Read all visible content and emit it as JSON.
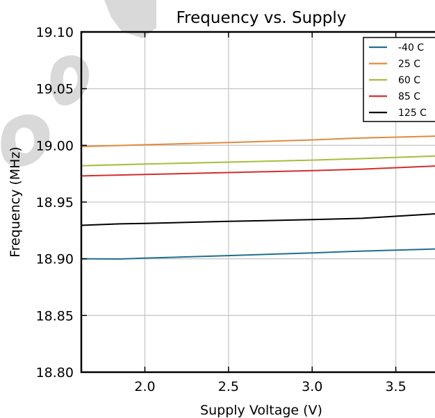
{
  "chart_data": {
    "type": "line",
    "title": "Frequency vs. Supply",
    "xlabel": "Supply Voltage (V)",
    "ylabel": "Frequency (MHz)",
    "xlim": [
      1.62,
      3.78
    ],
    "ylim": [
      18.8,
      19.1
    ],
    "xticks": [
      2.0,
      2.5,
      3.0,
      3.5
    ],
    "xtick_labels": [
      "2.0",
      "2.5",
      "3.0",
      "3.5"
    ],
    "yticks": [
      18.8,
      18.85,
      18.9,
      18.95,
      19.0,
      19.05,
      19.1
    ],
    "ytick_labels": [
      "18.80",
      "18.85",
      "18.90",
      "18.95",
      "19.00",
      "19.05",
      "19.10"
    ],
    "grid": true,
    "legend_position": "top-right",
    "series": [
      {
        "name": "-40 C",
        "color": "#1f6e8c",
        "x": [
          1.62,
          1.85,
          2.0,
          2.5,
          3.0,
          3.3,
          3.78
        ],
        "y": [
          18.9,
          18.8998,
          18.9005,
          18.9028,
          18.9052,
          18.9068,
          18.9088
        ]
      },
      {
        "name": "25 C",
        "color": "#e08a3c",
        "x": [
          1.62,
          2.0,
          2.5,
          3.0,
          3.3,
          3.78
        ],
        "y": [
          18.999,
          19.0005,
          19.0025,
          19.0048,
          19.0065,
          19.0082
        ]
      },
      {
        "name": "60 C",
        "color": "#a6bd3a",
        "x": [
          1.62,
          2.0,
          2.5,
          3.0,
          3.3,
          3.78
        ],
        "y": [
          18.982,
          18.9835,
          18.9852,
          18.987,
          18.9883,
          18.9908
        ]
      },
      {
        "name": "85 C",
        "color": "#d42c2c",
        "x": [
          1.62,
          2.0,
          2.5,
          3.0,
          3.3,
          3.78
        ],
        "y": [
          18.973,
          18.9743,
          18.976,
          18.9777,
          18.979,
          18.982
        ]
      },
      {
        "name": "125 C",
        "color": "#000000",
        "x": [
          1.62,
          1.85,
          2.0,
          2.5,
          3.0,
          3.3,
          3.78
        ],
        "y": [
          18.9295,
          18.9308,
          18.9312,
          18.933,
          18.9345,
          18.9357,
          18.94
        ]
      }
    ]
  }
}
